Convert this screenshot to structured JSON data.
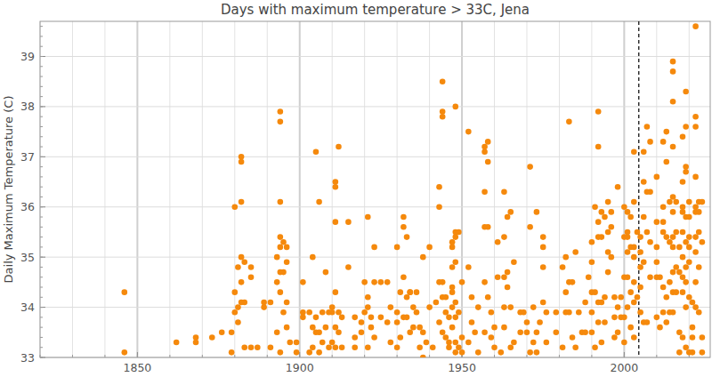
{
  "chart_data": {
    "type": "scatter",
    "title": "Days with maximum temperature > 33C, Jena",
    "ylabel": "Daily Maximum Temperature (C)",
    "color": "#f5890c",
    "marker": "circle",
    "grid": true,
    "xlim": [
      1820,
      2026.5
    ],
    "ylim": [
      33,
      39.7
    ],
    "xticks": [
      1850,
      1900,
      1950,
      2000
    ],
    "yticks": [
      33,
      34,
      35,
      36,
      37,
      38,
      39
    ],
    "vertical_line": 2004.5,
    "x": [
      1846,
      1846,
      1862,
      1868,
      1868,
      1873,
      1876,
      1879,
      1879,
      1880,
      1880,
      1880,
      1881,
      1881,
      1881,
      1882,
      1882,
      1882,
      1882,
      1882,
      1882,
      1883,
      1883,
      1883,
      1885,
      1885,
      1885,
      1887,
      1889,
      1889,
      1891,
      1891,
      1893,
      1893,
      1893,
      1894,
      1894,
      1894,
      1894,
      1894,
      1894,
      1894,
      1894,
      1895,
      1895,
      1895,
      1896,
      1896,
      1896,
      1896,
      1897,
      1899,
      1899,
      1901,
      1901,
      1901,
      1903,
      1903,
      1904,
      1904,
      1904,
      1905,
      1905,
      1905,
      1906,
      1906,
      1906,
      1907,
      1907,
      1908,
      1908,
      1909,
      1909,
      1910,
      1910,
      1910,
      1911,
      1911,
      1911,
      1911,
      1911,
      1911,
      1912,
      1912,
      1912,
      1913,
      1913,
      1915,
      1915,
      1917,
      1917,
      1917,
      1919,
      1919,
      1920,
      1920,
      1921,
      1921,
      1921,
      1921,
      1922,
      1922,
      1923,
      1923,
      1923,
      1925,
      1925,
      1927,
      1927,
      1928,
      1928,
      1930,
      1930,
      1930,
      1930,
      1931,
      1931,
      1932,
      1932,
      1932,
      1932,
      1933,
      1933,
      1933,
      1934,
      1934,
      1934,
      1935,
      1935,
      1936,
      1936,
      1937,
      1937,
      1938,
      1938,
      1938,
      1939,
      1940,
      1940,
      1941,
      1942,
      1943,
      1943,
      1943,
      1943,
      1944,
      1944,
      1944,
      1944,
      1944,
      1944,
      1945,
      1945,
      1945,
      1946,
      1946,
      1946,
      1947,
      1947,
      1947,
      1947,
      1947,
      1947,
      1947,
      1948,
      1948,
      1948,
      1948,
      1948,
      1948,
      1948,
      1948,
      1949,
      1949,
      1949,
      1950,
      1950,
      1950,
      1952,
      1952,
      1952,
      1953,
      1953,
      1954,
      1955,
      1955,
      1957,
      1957,
      1957,
      1957,
      1957,
      1957,
      1958,
      1958,
      1958,
      1958,
      1959,
      1959,
      1960,
      1960,
      1961,
      1961,
      1962,
      1963,
      1963,
      1963,
      1963,
      1963,
      1964,
      1964,
      1964,
      1965,
      1965,
      1965,
      1966,
      1966,
      1968,
      1968,
      1969,
      1970,
      1970,
      1971,
      1971,
      1971,
      1972,
      1972,
      1973,
      1973,
      1973,
      1974,
      1975,
      1975,
      1975,
      1975,
      1976,
      1976,
      1979,
      1979,
      1981,
      1981,
      1982,
      1982,
      1982,
      1983,
      1983,
      1983,
      1984,
      1984,
      1985,
      1985,
      1986,
      1987,
      1988,
      1988,
      1989,
      1990,
      1990,
      1990,
      1990,
      1990,
      1991,
      1991,
      1991,
      1992,
      1992,
      1992,
      1992,
      1992,
      1992,
      1993,
      1993,
      1993,
      1993,
      1994,
      1994,
      1994,
      1995,
      1995,
      1995,
      1995,
      1996,
      1996,
      1996,
      1997,
      1997,
      1997,
      1998,
      1998,
      1998,
      1999,
      1999,
      2000,
      2000,
      2000,
      2000,
      2000,
      2001,
      2001,
      2001,
      2001,
      2001,
      2001,
      2002,
      2002,
      2002,
      2002,
      2003,
      2003,
      2003,
      2003,
      2003,
      2003,
      2003,
      2004,
      2004,
      2005,
      2005,
      2005,
      2005,
      2005,
      2006,
      2006,
      2006,
      2006,
      2006,
      2007,
      2007,
      2007,
      2007,
      2008,
      2008,
      2008,
      2008,
      2010,
      2010,
      2010,
      2010,
      2010,
      2010,
      2011,
      2011,
      2012,
      2012,
      2012,
      2012,
      2012,
      2012,
      2013,
      2013,
      2013,
      2013,
      2013,
      2014,
      2014,
      2014,
      2014,
      2015,
      2015,
      2015,
      2015,
      2015,
      2015,
      2015,
      2015,
      2015,
      2015,
      2015,
      2016,
      2016,
      2016,
      2016,
      2017,
      2017,
      2017,
      2017,
      2018,
      2018,
      2018,
      2018,
      2018,
      2018,
      2018,
      2018,
      2018,
      2019,
      2019,
      2019,
      2019,
      2019,
      2019,
      2019,
      2019,
      2019,
      2019,
      2020,
      2020,
      2020,
      2020,
      2020,
      2020,
      2020,
      2021,
      2021,
      2021,
      2021,
      2022,
      2022,
      2022,
      2022,
      2022,
      2022,
      2022,
      2022,
      2022,
      2022,
      2023,
      2023,
      2023,
      2023,
      2023,
      2024,
      2024,
      2024,
      2024
    ],
    "values": [
      34.3,
      33.1,
      33.3,
      33.4,
      33.3,
      33.4,
      33.5,
      33.5,
      33.1,
      34.3,
      33.9,
      36.0,
      34.8,
      34.0,
      33.7,
      36.9,
      37.0,
      36.1,
      35.0,
      34.5,
      34.1,
      34.9,
      34.1,
      33.2,
      34.6,
      34.8,
      33.2,
      33.2,
      34.1,
      34.0,
      34.1,
      33.2,
      35.0,
      34.5,
      33.5,
      37.9,
      37.7,
      36.1,
      35.4,
      35.2,
      34.7,
      34.3,
      33.1,
      34.7,
      33.9,
      35.3,
      34.1,
      34.9,
      35.2,
      33.6,
      33.3,
      33.1,
      33.3,
      34.5,
      33.9,
      33.8,
      33.1,
      33.9,
      35.0,
      33.6,
      33.2,
      37.1,
      33.5,
      33.8,
      36.1,
      33.5,
      33.1,
      33.9,
      33.3,
      34.7,
      33.6,
      33.2,
      33.9,
      33.9,
      33.3,
      34.0,
      36.4,
      36.5,
      35.7,
      34.3,
      33.6,
      33.2,
      37.2,
      33.9,
      33.5,
      33.8,
      33.2,
      35.7,
      34.8,
      33.8,
      33.4,
      33.2,
      33.5,
      33.7,
      34.5,
      33.9,
      33.2,
      35.8,
      34.2,
      34.0,
      33.8,
      33.6,
      35.2,
      34.5,
      33.4,
      34.5,
      33.8,
      34.5,
      33.7,
      33.3,
      34.0,
      35.2,
      33.9,
      33.7,
      33.2,
      34.3,
      33.4,
      35.8,
      35.6,
      34.6,
      33.8,
      35.4,
      34.2,
      33.8,
      34.3,
      34.3,
      33.5,
      34.0,
      33.6,
      34.3,
      33.9,
      33.6,
      33.2,
      35.0,
      33.5,
      33.0,
      33.3,
      35.2,
      34.0,
      33.2,
      34.1,
      36.0,
      36.4,
      34.5,
      33.7,
      38.5,
      37.9,
      37.8,
      34.5,
      34.2,
      33.5,
      34.2,
      33.9,
      33.4,
      33.8,
      33.3,
      33.2,
      34.8,
      35.3,
      35.2,
      34.4,
      34.3,
      34.0,
      33.6,
      38.0,
      35.5,
      35.4,
      34.9,
      34.1,
      33.8,
      33.3,
      33.1,
      35.5,
      33.9,
      33.2,
      33.4,
      34.5,
      33.1,
      37.5,
      34.8,
      33.3,
      34.2,
      33.7,
      33.5,
      34.0,
      33.1,
      37.2,
      37.1,
      36.3,
      35.6,
      34.5,
      33.5,
      37.3,
      36.9,
      35.6,
      34.2,
      33.9,
      33.4,
      33.6,
      33.2,
      35.3,
      34.6,
      33.1,
      36.3,
      35.4,
      34.6,
      34.0,
      33.6,
      35.8,
      34.7,
      34.4,
      35.9,
      34.0,
      33.2,
      34.9,
      33.3,
      33.9,
      33.5,
      33.9,
      33.7,
      33.5,
      36.8,
      35.6,
      33.1,
      34.0,
      33.3,
      35.9,
      33.5,
      33.1,
      33.7,
      35.4,
      35.2,
      34.8,
      34.1,
      33.9,
      33.3,
      33.5,
      33.9,
      34.8,
      33.2,
      35.0,
      34.3,
      33.9,
      37.7,
      34.5,
      33.9,
      34.5,
      33.4,
      35.1,
      33.2,
      33.9,
      33.5,
      34.1,
      33.5,
      34.6,
      35.3,
      34.9,
      34.3,
      33.9,
      33.5,
      36.0,
      34.3,
      33.2,
      37.2,
      37.9,
      35.7,
      35.4,
      34.1,
      33.7,
      35.9,
      35.4,
      34.1,
      33.3,
      35.8,
      34.2,
      33.7,
      36.1,
      35.5,
      35.1,
      34.7,
      35.9,
      35.6,
      35.0,
      34.2,
      33.4,
      33.8,
      36.4,
      34.0,
      33.5,
      34.2,
      33.8,
      36.0,
      35.4,
      34.6,
      33.8,
      33.3,
      35.9,
      35.5,
      35.4,
      35.1,
      34.6,
      34.0,
      35.8,
      35.2,
      34.3,
      33.6,
      37.1,
      36.1,
      35.2,
      35.0,
      34.5,
      34.1,
      33.4,
      35.5,
      34.2,
      35.4,
      35.1,
      34.8,
      34.4,
      33.9,
      37.1,
      36.5,
      35.8,
      34.9,
      33.7,
      37.6,
      36.3,
      35.5,
      33.7,
      37.3,
      36.3,
      35.3,
      34.6,
      36.6,
      35.7,
      35.2,
      34.6,
      34.9,
      33.8,
      34.6,
      33.6,
      37.3,
      36.0,
      35.7,
      35.5,
      34.4,
      33.9,
      37.5,
      36.9,
      35.4,
      34.2,
      33.7,
      36.1,
      35.3,
      34.5,
      33.9,
      38.9,
      38.7,
      38.1,
      37.2,
      36.2,
      35.9,
      35.4,
      35.2,
      34.7,
      34.3,
      33.9,
      36.1,
      35.5,
      34.8,
      34.3,
      35.2,
      34.7,
      33.5,
      33.1,
      37.4,
      36.5,
      36.0,
      35.9,
      35.5,
      35.0,
      34.6,
      34.3,
      33.4,
      38.3,
      37.6,
      36.8,
      36.7,
      35.8,
      35.3,
      34.8,
      34.5,
      34.0,
      33.2,
      36.1,
      35.8,
      35.4,
      35.2,
      34.9,
      34.2,
      33.1,
      34.1,
      33.6,
      33.4,
      33.1,
      39.6,
      37.8,
      37.6,
      36.6,
      36.0,
      35.9,
      35.4,
      35.1,
      34.5,
      34.0,
      36.1,
      35.9,
      35.5,
      34.8,
      33.9,
      36.1,
      35.3,
      33.4,
      33.1
    ]
  }
}
